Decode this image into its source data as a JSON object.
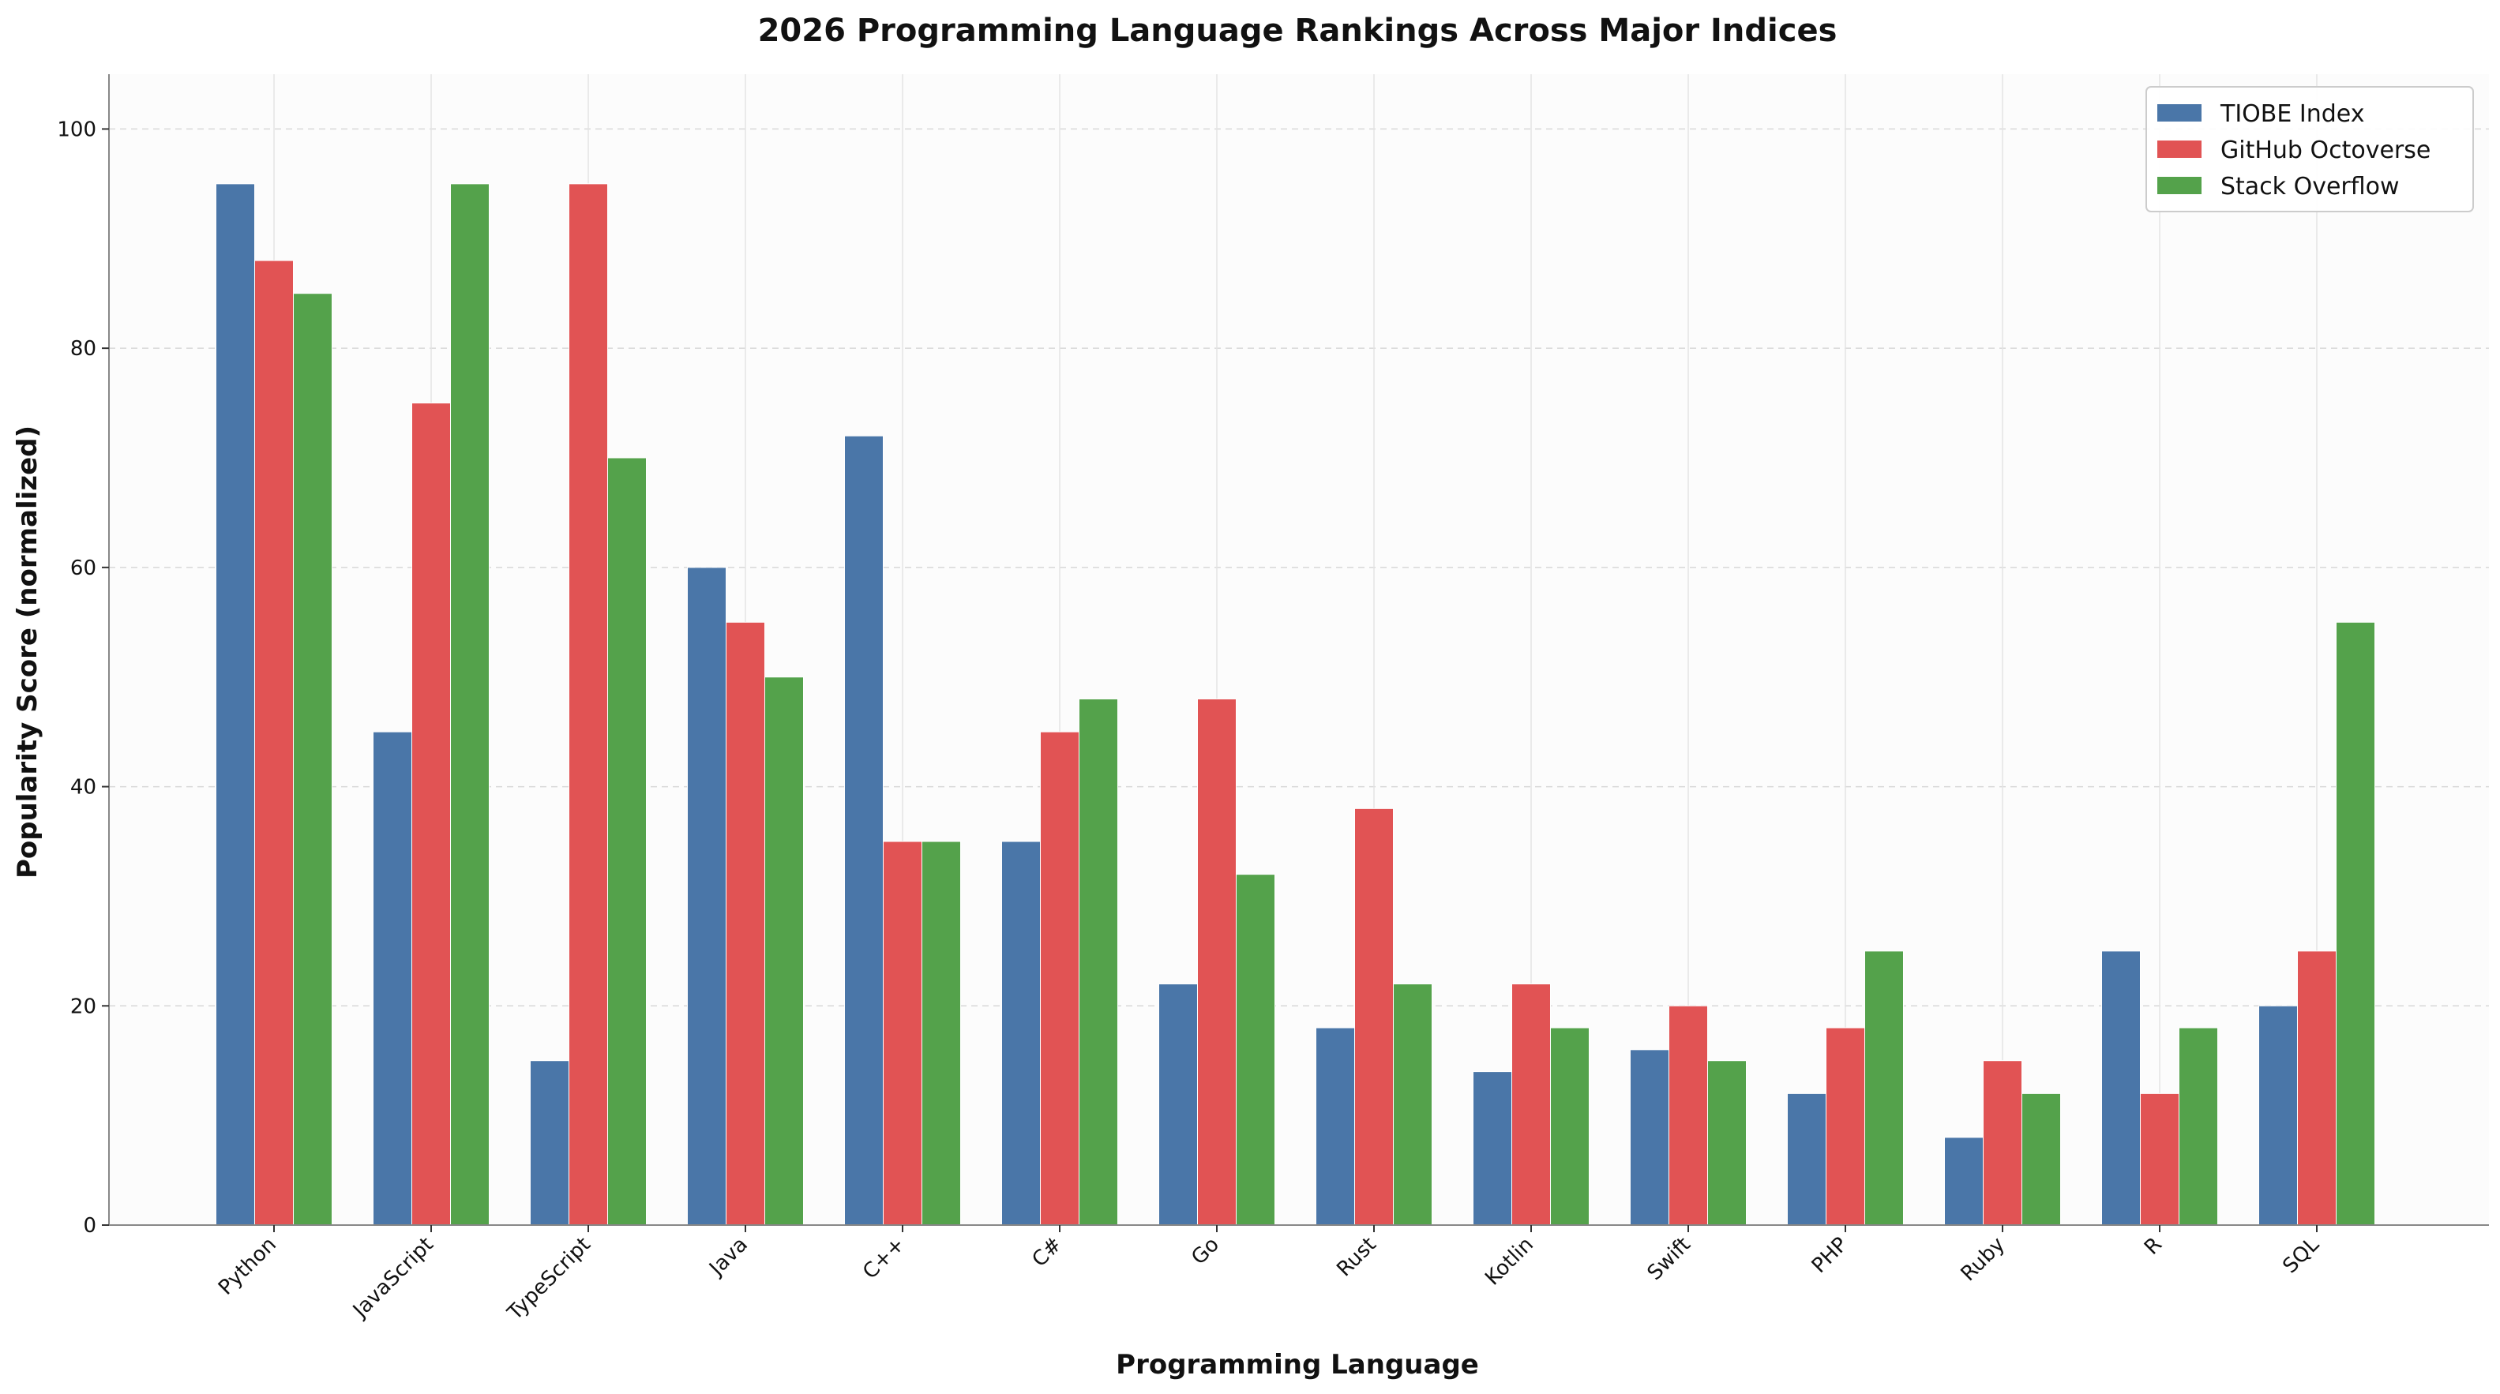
{
  "chart_data": {
    "type": "bar",
    "title": "2026 Programming Language Rankings Across Major Indices",
    "xlabel": "Programming Language",
    "ylabel": "Popularity Score (normalized)",
    "ylim": [
      0,
      105
    ],
    "yticks": [
      0,
      20,
      40,
      60,
      80,
      100
    ],
    "grid": true,
    "legend_position": "top-right",
    "categories": [
      "Python",
      "JavaScript",
      "TypeScript",
      "Java",
      "C++",
      "C#",
      "Go",
      "Rust",
      "Kotlin",
      "Swift",
      "PHP",
      "Ruby",
      "R",
      "SQL"
    ],
    "series": [
      {
        "name": "TIOBE Index",
        "color": "#4a76a8",
        "values": [
          95,
          45,
          15,
          60,
          72,
          35,
          22,
          18,
          14,
          16,
          12,
          8,
          25,
          20
        ]
      },
      {
        "name": "GitHub Octoverse",
        "color": "#e15354",
        "values": [
          88,
          75,
          95,
          55,
          35,
          45,
          48,
          38,
          22,
          20,
          18,
          15,
          12,
          25
        ]
      },
      {
        "name": "Stack Overflow",
        "color": "#54a24b",
        "values": [
          85,
          95,
          70,
          50,
          35,
          48,
          32,
          22,
          18,
          15,
          25,
          12,
          18,
          55
        ]
      }
    ]
  }
}
